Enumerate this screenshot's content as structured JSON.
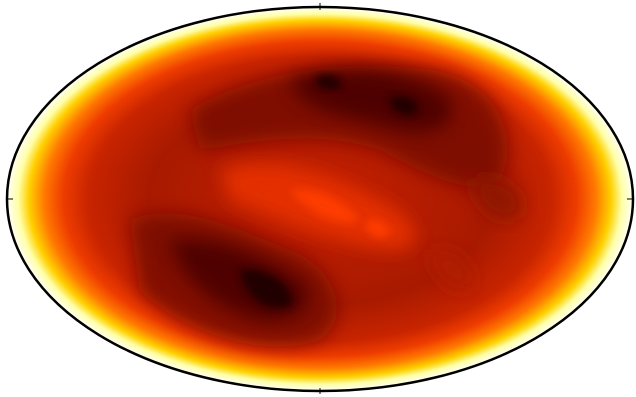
{
  "chart_data": {
    "type": "contour"
  }
}
